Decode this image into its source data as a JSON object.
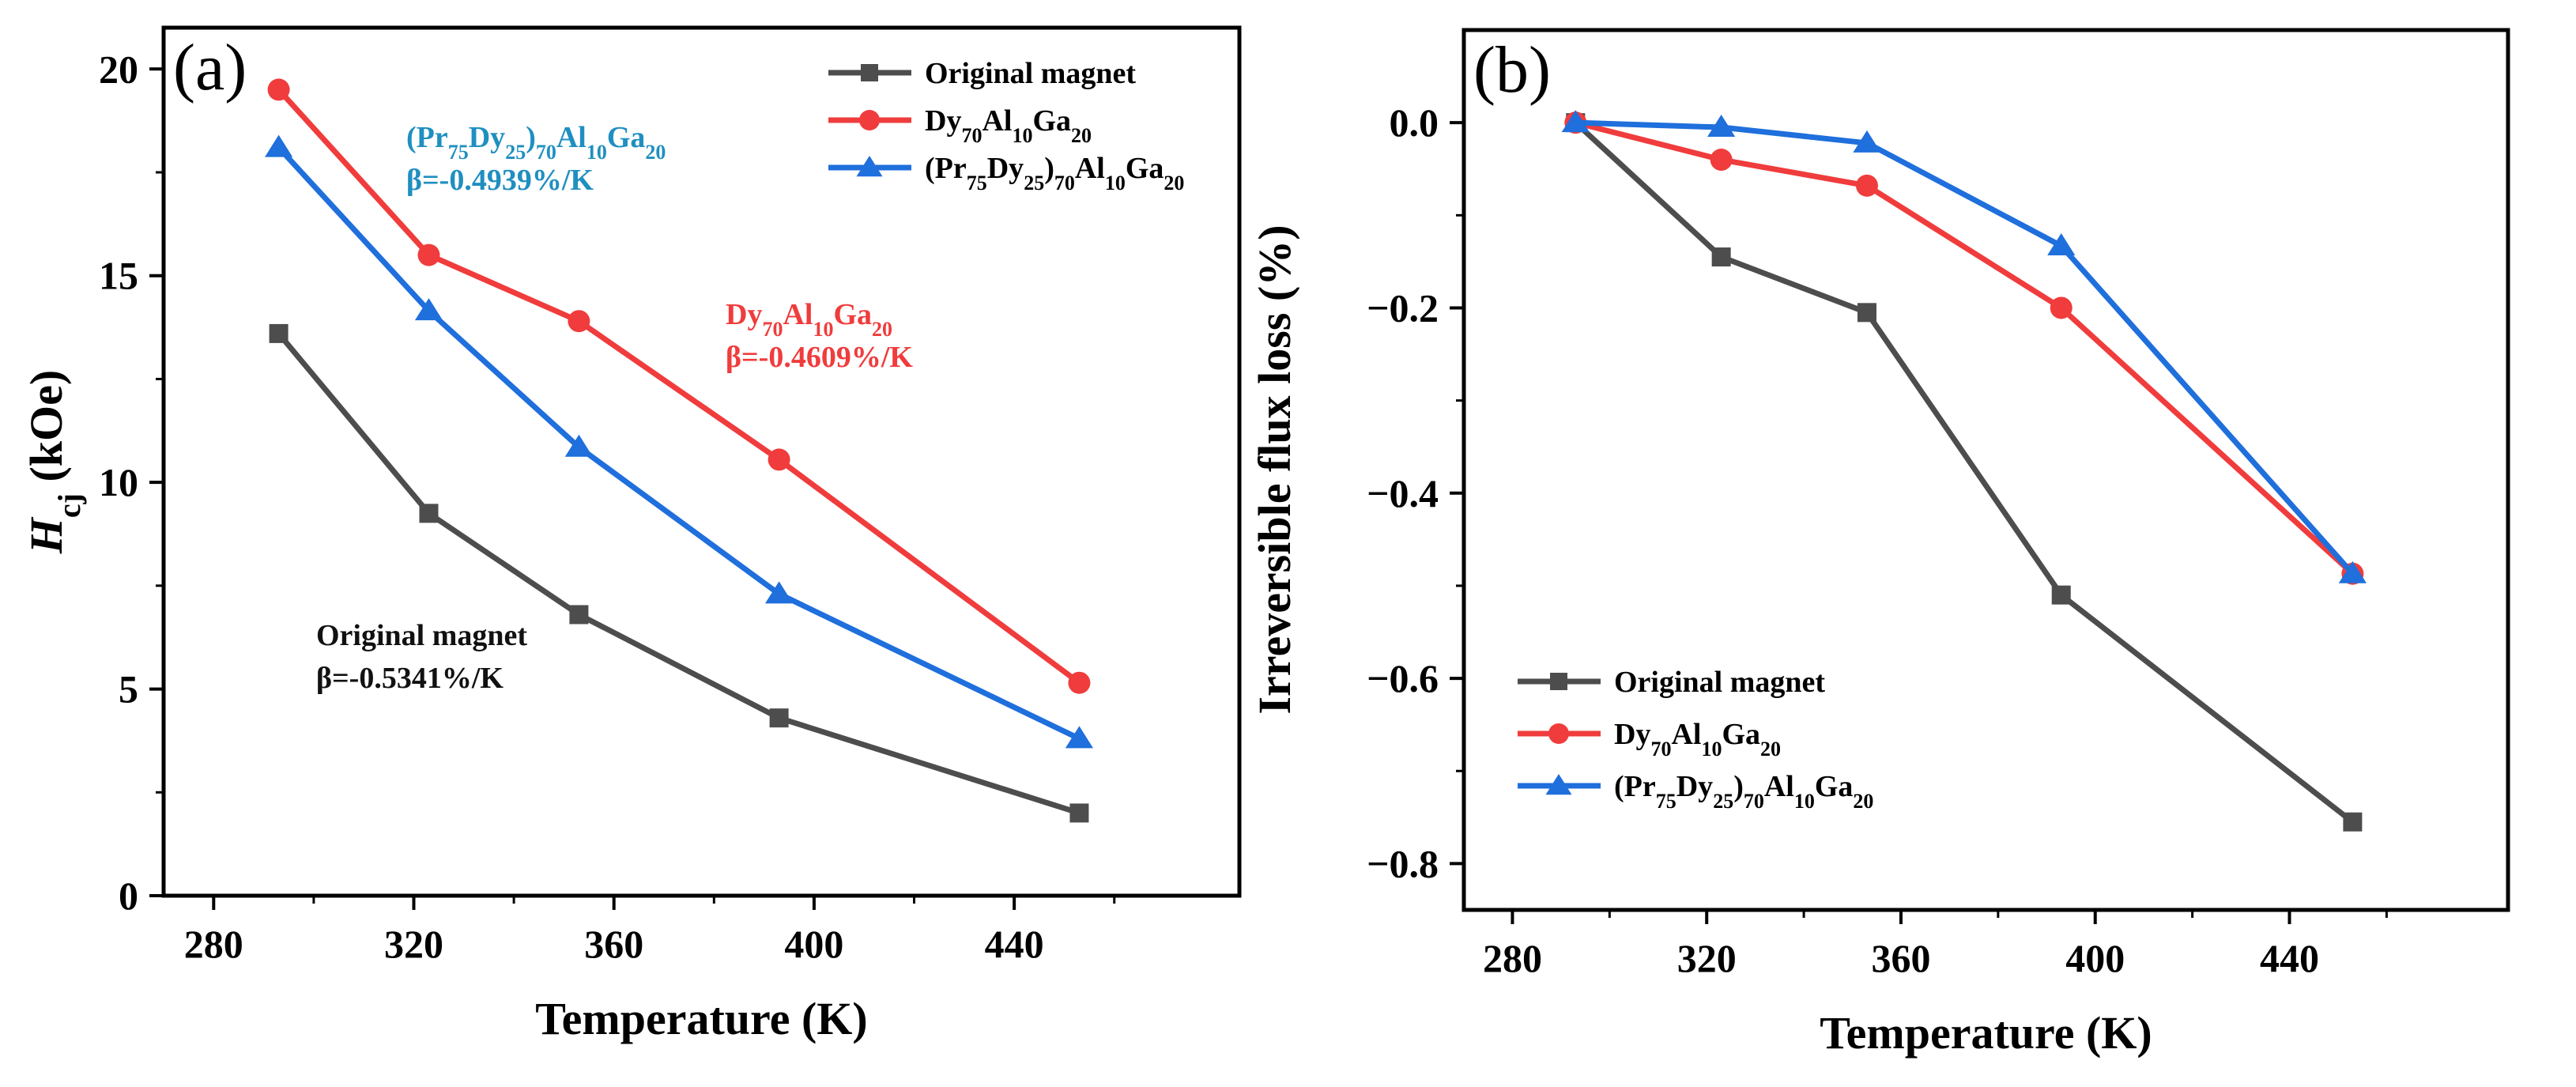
{
  "chart_data": [
    {
      "type": "line",
      "panel_label": "(a)",
      "xlabel": "Temperature (K)",
      "ylabel": "H_cj (kOe)",
      "ylabel_italic": "H",
      "ylabel_sub": "cj",
      "ylabel_unit": " (kOe)",
      "xlim": [
        270,
        485
      ],
      "ylim": [
        0,
        21
      ],
      "xticks": [
        280,
        320,
        360,
        400,
        440
      ],
      "yticks": [
        0,
        5,
        10,
        15,
        20
      ],
      "legend_position": "top-right",
      "x": [
        293,
        323,
        353,
        393,
        453
      ],
      "series": [
        {
          "name": "Original magnet",
          "marker": "square",
          "color": "#4d4d4d",
          "values": [
            13.6,
            9.25,
            6.8,
            4.3,
            2.0
          ]
        },
        {
          "name": "Dy70Al10Ga20",
          "marker": "circle",
          "color": "#f03c3c",
          "values": [
            19.5,
            15.5,
            13.9,
            10.55,
            5.15
          ]
        },
        {
          "name": "(Pr75Dy25)70Al10Ga20",
          "marker": "triangle",
          "color": "#1f6fdc",
          "values": [
            18.1,
            14.15,
            10.85,
            7.3,
            3.8
          ]
        }
      ],
      "annotations": [
        {
          "title": "(Pr75Dy25)70Al10Ga20",
          "beta": "β=-0.4939%/K",
          "color": "#1f8fc0"
        },
        {
          "title": "Dy70Al10Ga20",
          "beta": "β=-0.4609%/K",
          "color": "#f03c3c"
        },
        {
          "title": "Original magnet",
          "beta": "β=-0.5341%/K",
          "color": "#111111"
        }
      ]
    },
    {
      "type": "line",
      "panel_label": "(b)",
      "xlabel": "Temperature (K)",
      "ylabel": "Irreversible flux loss (%)",
      "xlim": [
        270,
        485
      ],
      "ylim": [
        -0.85,
        0.1
      ],
      "xticks": [
        280,
        320,
        360,
        400,
        440
      ],
      "yticks": [
        0.0,
        -0.2,
        -0.4,
        -0.6,
        -0.8
      ],
      "ytick_labels": [
        "0.0",
        "−0.2",
        "−0.4",
        "−0.6",
        "−0.8"
      ],
      "legend_position": "bottom-left",
      "x": [
        293,
        323,
        353,
        393,
        453
      ],
      "series": [
        {
          "name": "Original magnet",
          "marker": "square",
          "color": "#4d4d4d",
          "values": [
            0.0,
            -0.145,
            -0.205,
            -0.51,
            -0.755
          ]
        },
        {
          "name": "Dy70Al10Ga20",
          "marker": "circle",
          "color": "#f03c3c",
          "values": [
            0.0,
            -0.04,
            -0.068,
            -0.2,
            -0.487
          ]
        },
        {
          "name": "(Pr75Dy25)70Al10Ga20",
          "marker": "triangle",
          "color": "#1f6fdc",
          "values": [
            0.0,
            -0.005,
            -0.022,
            -0.133,
            -0.487
          ]
        }
      ]
    }
  ]
}
